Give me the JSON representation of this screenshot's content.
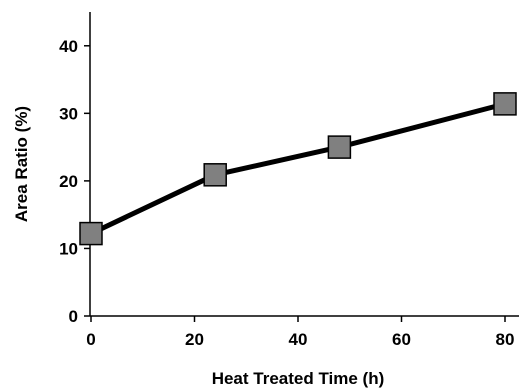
{
  "chart_data": {
    "type": "line",
    "title": "",
    "xlabel": "Heat Treated Time (h)",
    "ylabel": "Area Ratio (%)",
    "xlim": [
      0,
      80
    ],
    "ylim": [
      0,
      45
    ],
    "xticks": [
      0,
      20,
      40,
      60,
      80
    ],
    "yticks": [
      0,
      10,
      20,
      30,
      40
    ],
    "grid": false,
    "legend": "none",
    "series": [
      {
        "x": [
          0,
          24,
          48,
          80
        ],
        "y": [
          12.2,
          20.9,
          25.0,
          31.4
        ],
        "marker": "square",
        "line_color": "#000000",
        "marker_fill": "#808080"
      }
    ]
  }
}
